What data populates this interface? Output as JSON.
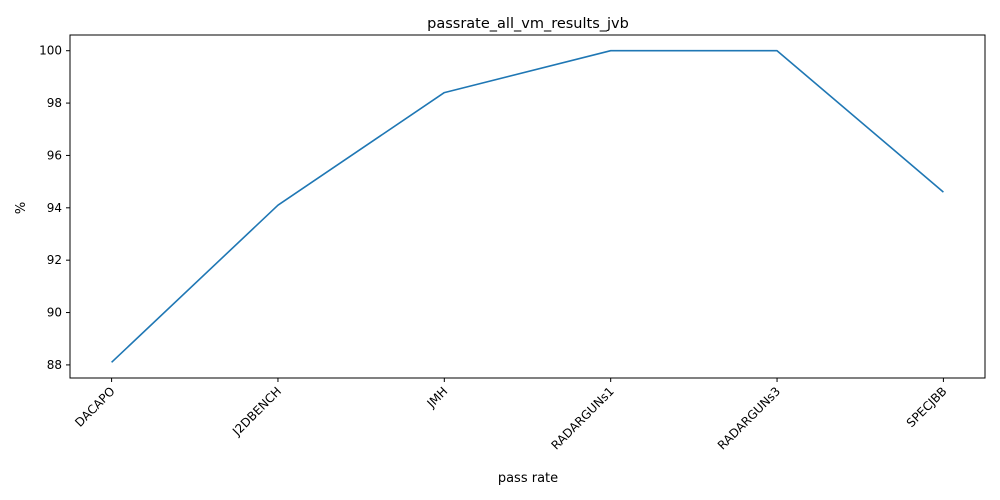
{
  "chart_data": {
    "type": "line",
    "title": "passrate_all_vm_results_jvb",
    "xlabel": "pass rate",
    "ylabel": "%",
    "categories": [
      "DACAPO",
      "J2DBENCH",
      "JMH",
      "RADARGUNs1",
      "RADARGUNs3",
      "SPECJBB"
    ],
    "series": [
      {
        "values": [
          88.1,
          94.1,
          98.4,
          100.0,
          100.0,
          94.6
        ]
      }
    ],
    "ylim": [
      87.5,
      100.6
    ],
    "yticks": [
      88,
      90,
      92,
      94,
      96,
      98,
      100
    ],
    "grid": false,
    "legend": "none",
    "colors": {
      "line": "#1f77b4",
      "axis": "#000000"
    }
  }
}
